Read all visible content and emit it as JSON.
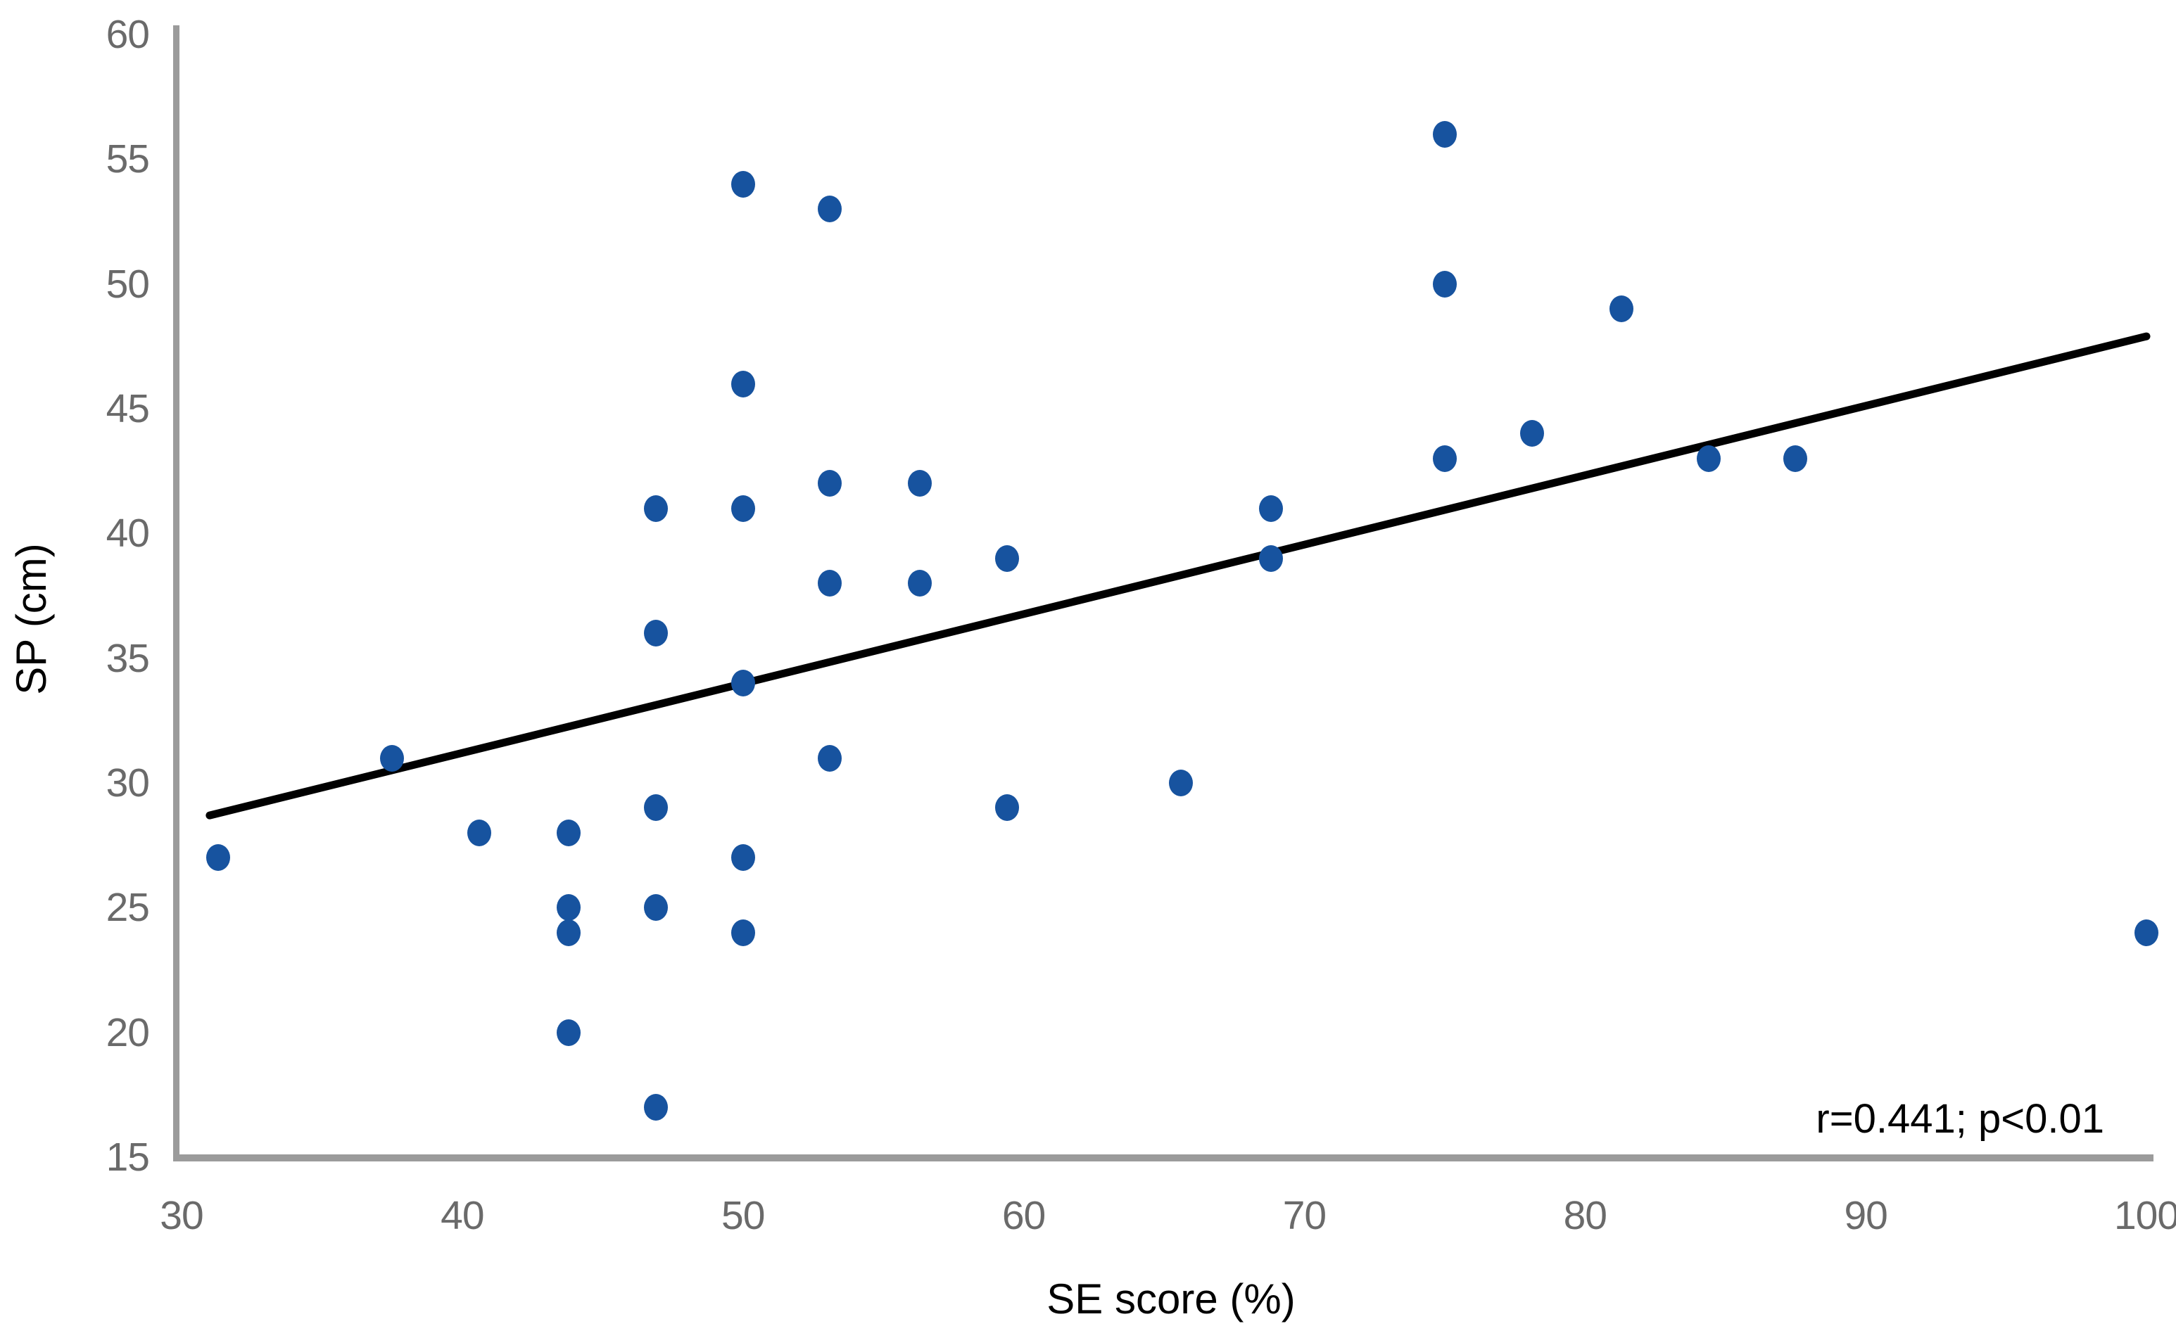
{
  "figure": {
    "background": "#FFFFFF"
  },
  "chart_data": {
    "type": "scatter",
    "title": "",
    "xlabel": "SE score (%)",
    "ylabel": "SP (cm)",
    "xlim": [
      30,
      100
    ],
    "ylim": [
      15,
      60
    ],
    "x_ticks": [
      "30",
      "40",
      "50",
      "60",
      "70",
      "80",
      "90",
      "100"
    ],
    "y_ticks": [
      "60",
      "55",
      "50",
      "45",
      "40",
      "35",
      "30",
      "25",
      "20",
      "15"
    ],
    "grid": false,
    "legend_position": "none",
    "annotation": "r=0.441; p<0.01",
    "annotation_position": "bottom-right",
    "marker_color": "#17539F",
    "trendline_color": "#000000",
    "axis_line_color": "#9B9B9B",
    "tick_label_color": "#6A6A6A",
    "series": [
      {
        "name": "observations",
        "marker": "circle",
        "points": [
          [
            31.3,
            27
          ],
          [
            37.5,
            31
          ],
          [
            40.6,
            28
          ],
          [
            43.8,
            28
          ],
          [
            43.8,
            25
          ],
          [
            43.8,
            24
          ],
          [
            43.8,
            20
          ],
          [
            46.9,
            41
          ],
          [
            46.9,
            36
          ],
          [
            46.9,
            29
          ],
          [
            46.9,
            25
          ],
          [
            46.9,
            17
          ],
          [
            50,
            54
          ],
          [
            50,
            46
          ],
          [
            50,
            41
          ],
          [
            50,
            34
          ],
          [
            50,
            27
          ],
          [
            50,
            24
          ],
          [
            53.1,
            53
          ],
          [
            53.1,
            42
          ],
          [
            53.1,
            38
          ],
          [
            53.1,
            31
          ],
          [
            56.3,
            42
          ],
          [
            56.3,
            38
          ],
          [
            59.4,
            39
          ],
          [
            59.4,
            29
          ],
          [
            65.6,
            30
          ],
          [
            68.8,
            41
          ],
          [
            68.8,
            39
          ],
          [
            75,
            56
          ],
          [
            75,
            50
          ],
          [
            75,
            43
          ],
          [
            78.1,
            44
          ],
          [
            81.3,
            49
          ],
          [
            84.4,
            43
          ],
          [
            87.5,
            43
          ],
          [
            100,
            24
          ]
        ]
      }
    ],
    "trendline": {
      "x1": 31,
      "y1": 28.7,
      "x2": 100,
      "y2": 47.9
    }
  }
}
